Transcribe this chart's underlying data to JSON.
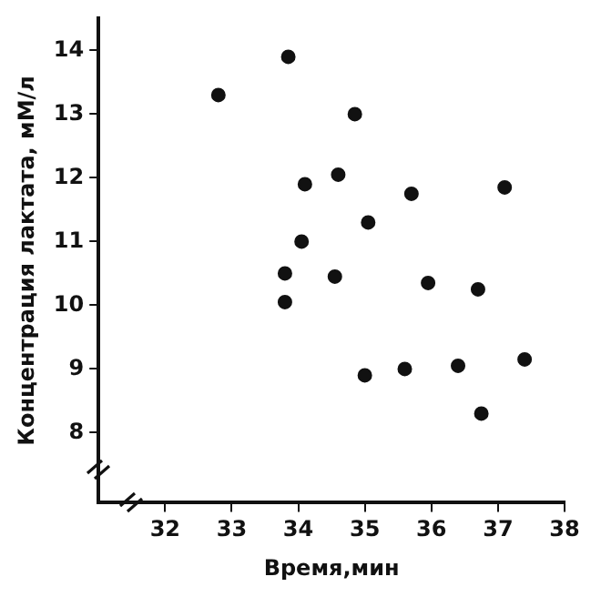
{
  "chart_data": {
    "type": "scatter",
    "xlabel": "Время,мин",
    "ylabel": "Концентрация лактата, мМ/л",
    "x": [
      32.8,
      33.85,
      34.85,
      34.1,
      34.6,
      35.7,
      37.1,
      35.05,
      34.05,
      33.8,
      34.55,
      35.95,
      36.7,
      33.8,
      35.0,
      35.6,
      36.4,
      37.4,
      36.75
    ],
    "series": [
      {
        "color": "#111111",
        "values": [
          13.3,
          13.9,
          13.0,
          11.9,
          12.05,
          11.75,
          11.85,
          11.3,
          11.0,
          10.5,
          10.45,
          10.35,
          10.25,
          10.05,
          8.9,
          9.0,
          9.05,
          9.15,
          8.3
        ]
      }
    ],
    "xlim": [
      31,
      38
    ],
    "xticks": [
      32,
      33,
      34,
      35,
      36,
      37,
      38
    ],
    "ylim": [
      6.9,
      14.5
    ],
    "yticks": [
      8,
      9,
      10,
      11,
      12,
      13,
      14
    ],
    "grid": false,
    "legend": false,
    "marker": "circle"
  }
}
